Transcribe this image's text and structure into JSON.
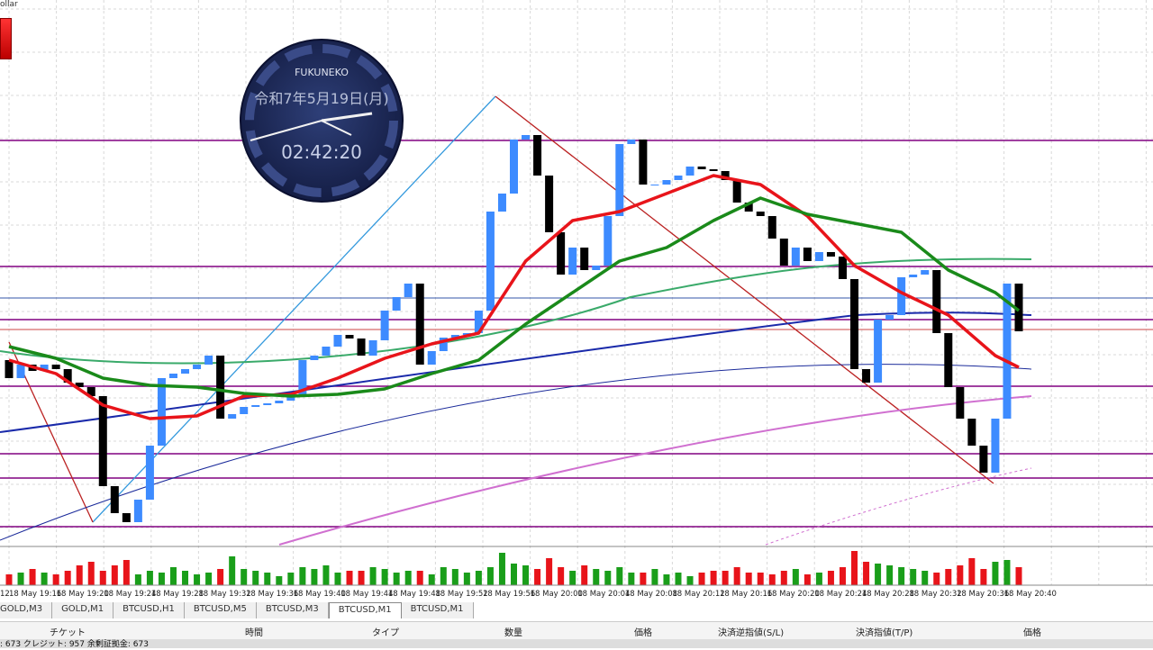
{
  "window": {
    "title_fragment": "ollar"
  },
  "clock": {
    "brand": "FUKUNEKO",
    "date": "令和7年5月19日(月)",
    "time": "02:42:20"
  },
  "chart_data": {
    "type": "candlestick",
    "ylim": [
      0,
      605
    ],
    "up_color": "#3d8bff",
    "down_color": "#000000",
    "open": [
      205,
      185,
      200,
      193,
      200,
      195,
      180,
      175,
      165,
      65,
      35,
      25,
      50,
      110,
      185,
      190,
      195,
      200,
      210,
      140,
      145,
      153,
      155,
      157,
      160,
      165,
      205,
      210,
      220,
      233,
      229,
      210,
      227,
      260,
      275,
      290,
      200,
      215,
      230,
      233,
      235,
      260,
      370,
      390,
      450,
      455,
      410,
      347,
      300,
      330,
      305,
      310,
      365,
      445,
      450,
      400,
      400,
      405,
      410,
      420,
      417,
      415,
      405,
      380,
      370,
      365,
      340,
      310,
      330,
      315,
      325,
      320,
      295,
      195,
      180,
      250,
      255,
      297,
      300,
      305,
      235,
      175,
      140,
      110,
      80,
      140,
      290
    ],
    "close": [
      185,
      200,
      193,
      200,
      195,
      180,
      175,
      165,
      65,
      35,
      25,
      50,
      110,
      185,
      190,
      195,
      200,
      210,
      140,
      145,
      153,
      155,
      157,
      160,
      165,
      205,
      210,
      220,
      233,
      229,
      210,
      227,
      260,
      275,
      290,
      200,
      215,
      230,
      233,
      235,
      260,
      370,
      390,
      450,
      455,
      410,
      347,
      300,
      330,
      305,
      310,
      365,
      445,
      450,
      400,
      400,
      405,
      410,
      420,
      417,
      415,
      405,
      380,
      370,
      365,
      340,
      310,
      330,
      315,
      325,
      320,
      295,
      195,
      180,
      250,
      255,
      297,
      300,
      305,
      235,
      175,
      140,
      110,
      80,
      140,
      290,
      237
    ],
    "volume": [
      12,
      14,
      18,
      14,
      12,
      16,
      22,
      26,
      16,
      22,
      28,
      12,
      16,
      14,
      20,
      16,
      12,
      14,
      18,
      32,
      18,
      16,
      14,
      10,
      14,
      20,
      18,
      22,
      14,
      16,
      16,
      20,
      18,
      14,
      16,
      16,
      12,
      20,
      18,
      14,
      16,
      20,
      36,
      24,
      22,
      18,
      30,
      20,
      16,
      22,
      18,
      16,
      20,
      14,
      14,
      18,
      12,
      14,
      10,
      14,
      16,
      16,
      20,
      14,
      14,
      12,
      16,
      18,
      12,
      14,
      16,
      20,
      38,
      26,
      24,
      22,
      20,
      18,
      16,
      14,
      18,
      22,
      30,
      18,
      26,
      28,
      20
    ],
    "volume_lim": [
      0,
      42
    ],
    "volume_up_color": "#1a9e1a",
    "volume_down_color": "#e8141a",
    "ma_x": [
      0,
      4,
      8,
      12,
      16,
      20,
      24,
      28,
      32,
      36,
      40,
      44,
      48,
      52,
      56,
      60,
      64,
      68,
      72,
      76,
      80,
      84,
      86
    ],
    "ma": [
      {
        "color": "#e8141a",
        "width": 3.5,
        "values": [
          205,
          190,
          155,
          140,
          143,
          165,
          167,
          185,
          207,
          223,
          235,
          315,
          360,
          370,
          390,
          410,
          400,
          365,
          310,
          280,
          255,
          210,
          197
        ]
      },
      {
        "color": "#1a8a1a",
        "width": 3.5,
        "values": [
          220,
          207,
          185,
          177,
          175,
          168,
          165,
          167,
          173,
          190,
          205,
          245,
          280,
          315,
          330,
          360,
          385,
          367,
          357,
          347,
          305,
          280,
          260
        ]
      }
    ],
    "x_labels": [
      "12",
      "18 May 19:16",
      "18 May 19:20",
      "18 May 19:24",
      "18 May 19:28",
      "18 May 19:32",
      "18 May 19:36",
      "18 May 19:40",
      "18 May 19:44",
      "18 May 19:48",
      "18 May 19:52",
      "18 May 19:56",
      "18 May 20:00",
      "18 May 20:04",
      "18 May 20:08",
      "18 May 20:12",
      "18 May 20:16",
      "18 May 20:20",
      "18 May 20:24",
      "18 May 20:28",
      "18 May 20:32",
      "18 May 20:36",
      "18 May 20:40"
    ]
  },
  "tabs": [
    "GOLD,M3",
    "GOLD,M1",
    "BTCUSD,H1",
    "BTCUSD,M5",
    "BTCUSD,M3",
    "BTCUSD,M1",
    "BTCUSD,M1"
  ],
  "active_tab": 5,
  "columns": [
    "チケット",
    "時間",
    "タイプ",
    "数量",
    "価格",
    "決済逆指値(S/L)",
    "決済指値(T/P)",
    "価格"
  ],
  "status": ": 673  クレジット: 957  余剰証拠金: 673"
}
